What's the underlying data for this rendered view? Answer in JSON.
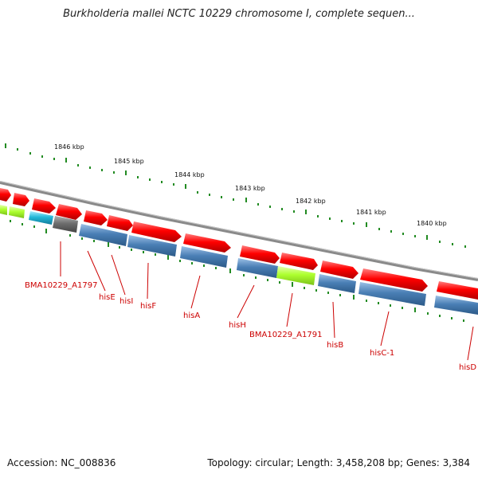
{
  "title": "Burkholderia mallei NCTC 10229 chromosome I, complete sequen...",
  "footer": {
    "accession": "Accession: NC_008836",
    "topology": "Topology: circular; Length: 3,458,208 bp; Genes: 3,384"
  },
  "ticks": [
    "1846 kbp",
    "1845 kbp",
    "1844 kbp",
    "1843 kbp",
    "1842 kbp",
    "1841 kbp",
    "1840 kbp"
  ],
  "colors": {
    "forward": "#ff0000",
    "reverse": "#4a7fb5",
    "other": "#adff2f",
    "rna": "#22b8d8",
    "pseudo": "#6e6e6e",
    "label": "#cc0000",
    "tick": "#228b22",
    "backbone": "#8a8a8a"
  },
  "gene_labels": [
    "BMA10229_A1797",
    "hisE",
    "hisI",
    "hisF",
    "hisA",
    "hisH",
    "BMA10229_A1791",
    "hisB",
    "hisC-1",
    "hisD"
  ]
}
